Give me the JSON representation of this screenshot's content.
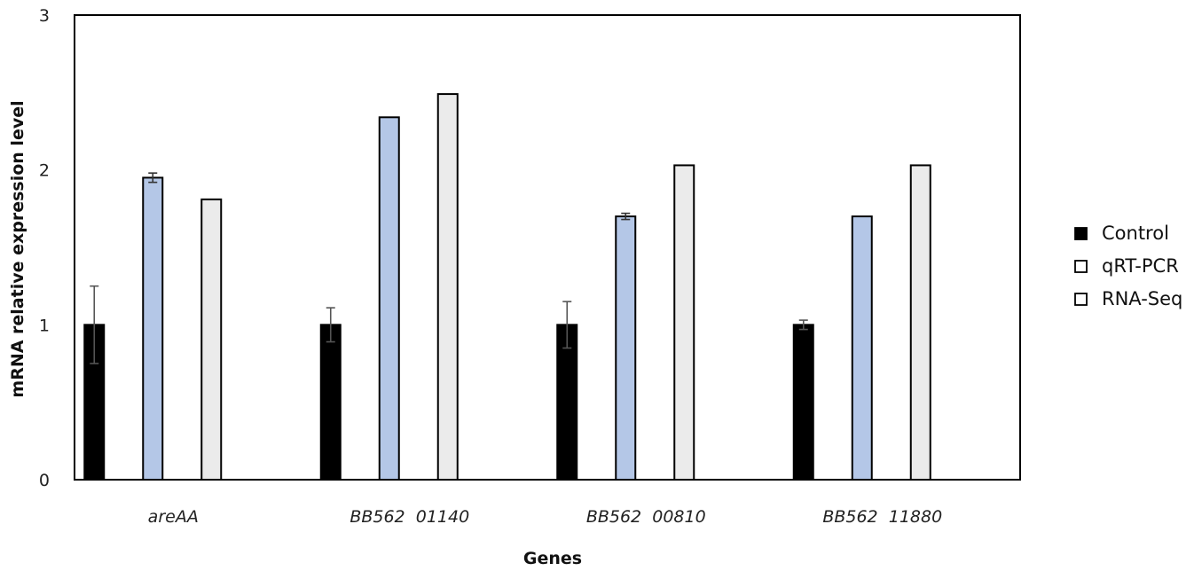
{
  "chart_data": {
    "type": "bar",
    "title": "",
    "xlabel": "Genes",
    "ylabel": "mRNA relative expression level",
    "categories": [
      "areAA",
      "BB562_01140",
      "BB562_00810",
      "BB562_11880"
    ],
    "category_display": [
      "areAA",
      "BB562  01140",
      "BB562  00810",
      "BB562  11880"
    ],
    "ylim": [
      0,
      3
    ],
    "yticks": [
      0,
      1,
      2,
      3
    ],
    "grid": false,
    "legend_position": "right",
    "series": [
      {
        "name": "Control",
        "color": "#000000",
        "values": [
          1.0,
          1.0,
          1.0,
          1.0
        ],
        "errors": [
          0.25,
          0.11,
          0.15,
          0.03
        ]
      },
      {
        "name": "qRT-PCR",
        "color": "#b4c7e7",
        "values": [
          1.95,
          2.34,
          1.7,
          1.7
        ],
        "errors": [
          0.03,
          0.0,
          0.02,
          0.0
        ]
      },
      {
        "name": "RNA-Seq",
        "color": "#ebebeb",
        "values": [
          1.81,
          2.49,
          2.03,
          2.03
        ],
        "errors": [
          0.0,
          0.0,
          0.0,
          0.0
        ]
      }
    ]
  }
}
